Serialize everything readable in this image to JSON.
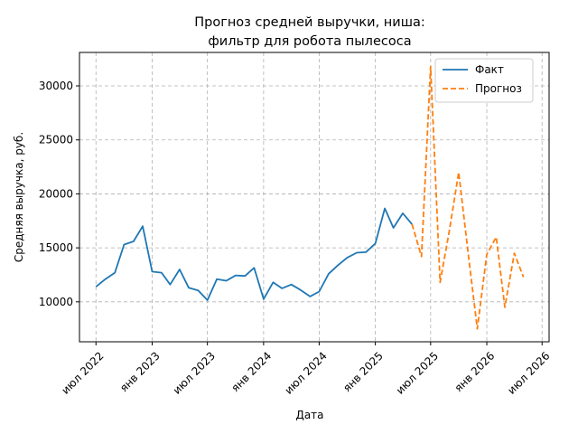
{
  "chart_data": {
    "type": "line",
    "title_lines": [
      "Прогноз средней выручки, ниша:",
      "фильтр для робота пылесоса"
    ],
    "xlabel": "Дата",
    "ylabel": "Средняя выручка, руб.",
    "x_ticks": [
      {
        "date": "2022-07-01",
        "label": "июл 2022"
      },
      {
        "date": "2023-01-01",
        "label": "янв 2023"
      },
      {
        "date": "2023-07-01",
        "label": "июл 2023"
      },
      {
        "date": "2024-01-01",
        "label": "янв 2024"
      },
      {
        "date": "2024-07-01",
        "label": "июл 2024"
      },
      {
        "date": "2025-01-01",
        "label": "янв 2025"
      },
      {
        "date": "2025-07-01",
        "label": "июл 2025"
      },
      {
        "date": "2026-01-01",
        "label": "янв 2026"
      },
      {
        "date": "2026-07-01",
        "label": "июл 2026"
      }
    ],
    "y_ticks": [
      10000,
      15000,
      20000,
      25000,
      30000
    ],
    "xlim": [
      "2022-05-08",
      "2026-07-24"
    ],
    "ylim": [
      6300,
      33100
    ],
    "grid": true,
    "legend_position": "top-right",
    "series": [
      {
        "name": "Факт",
        "color": "#1f77b4",
        "style": "solid",
        "points": [
          [
            "2022-07-01",
            11400
          ],
          [
            "2022-08-01",
            12100
          ],
          [
            "2022-09-01",
            12700
          ],
          [
            "2022-10-01",
            15300
          ],
          [
            "2022-11-01",
            15600
          ],
          [
            "2022-12-01",
            17000
          ],
          [
            "2023-01-01",
            12800
          ],
          [
            "2023-02-01",
            12700
          ],
          [
            "2023-03-01",
            11600
          ],
          [
            "2023-04-01",
            13000
          ],
          [
            "2023-05-01",
            11300
          ],
          [
            "2023-06-01",
            11050
          ],
          [
            "2023-07-01",
            10150
          ],
          [
            "2023-08-01",
            12100
          ],
          [
            "2023-09-01",
            11950
          ],
          [
            "2023-10-01",
            12450
          ],
          [
            "2023-11-01",
            12400
          ],
          [
            "2023-12-01",
            13150
          ],
          [
            "2024-01-01",
            10250
          ],
          [
            "2024-02-01",
            11800
          ],
          [
            "2024-03-01",
            11250
          ],
          [
            "2024-04-01",
            11600
          ],
          [
            "2024-05-01",
            11100
          ],
          [
            "2024-06-01",
            10500
          ],
          [
            "2024-07-01",
            10950
          ],
          [
            "2024-08-01",
            12600
          ],
          [
            "2024-09-01",
            13400
          ],
          [
            "2024-10-01",
            14100
          ],
          [
            "2024-11-01",
            14550
          ],
          [
            "2024-12-01",
            14600
          ],
          [
            "2025-01-01",
            15400
          ],
          [
            "2025-02-01",
            18650
          ],
          [
            "2025-03-01",
            16850
          ],
          [
            "2025-04-01",
            18200
          ],
          [
            "2025-05-01",
            17200
          ]
        ]
      },
      {
        "name": "Прогноз",
        "color": "#ff7f0e",
        "style": "dashed",
        "points": [
          [
            "2025-05-01",
            17200
          ],
          [
            "2025-06-01",
            14200
          ],
          [
            "2025-07-01",
            31800
          ],
          [
            "2025-08-01",
            11800
          ],
          [
            "2025-09-01",
            16700
          ],
          [
            "2025-10-01",
            22000
          ],
          [
            "2025-11-01",
            14500
          ],
          [
            "2025-12-01",
            7500
          ],
          [
            "2026-01-01",
            14400
          ],
          [
            "2026-02-01",
            16000
          ],
          [
            "2026-03-01",
            9500
          ],
          [
            "2026-04-01",
            14500
          ],
          [
            "2026-05-01",
            12300
          ]
        ]
      }
    ]
  }
}
